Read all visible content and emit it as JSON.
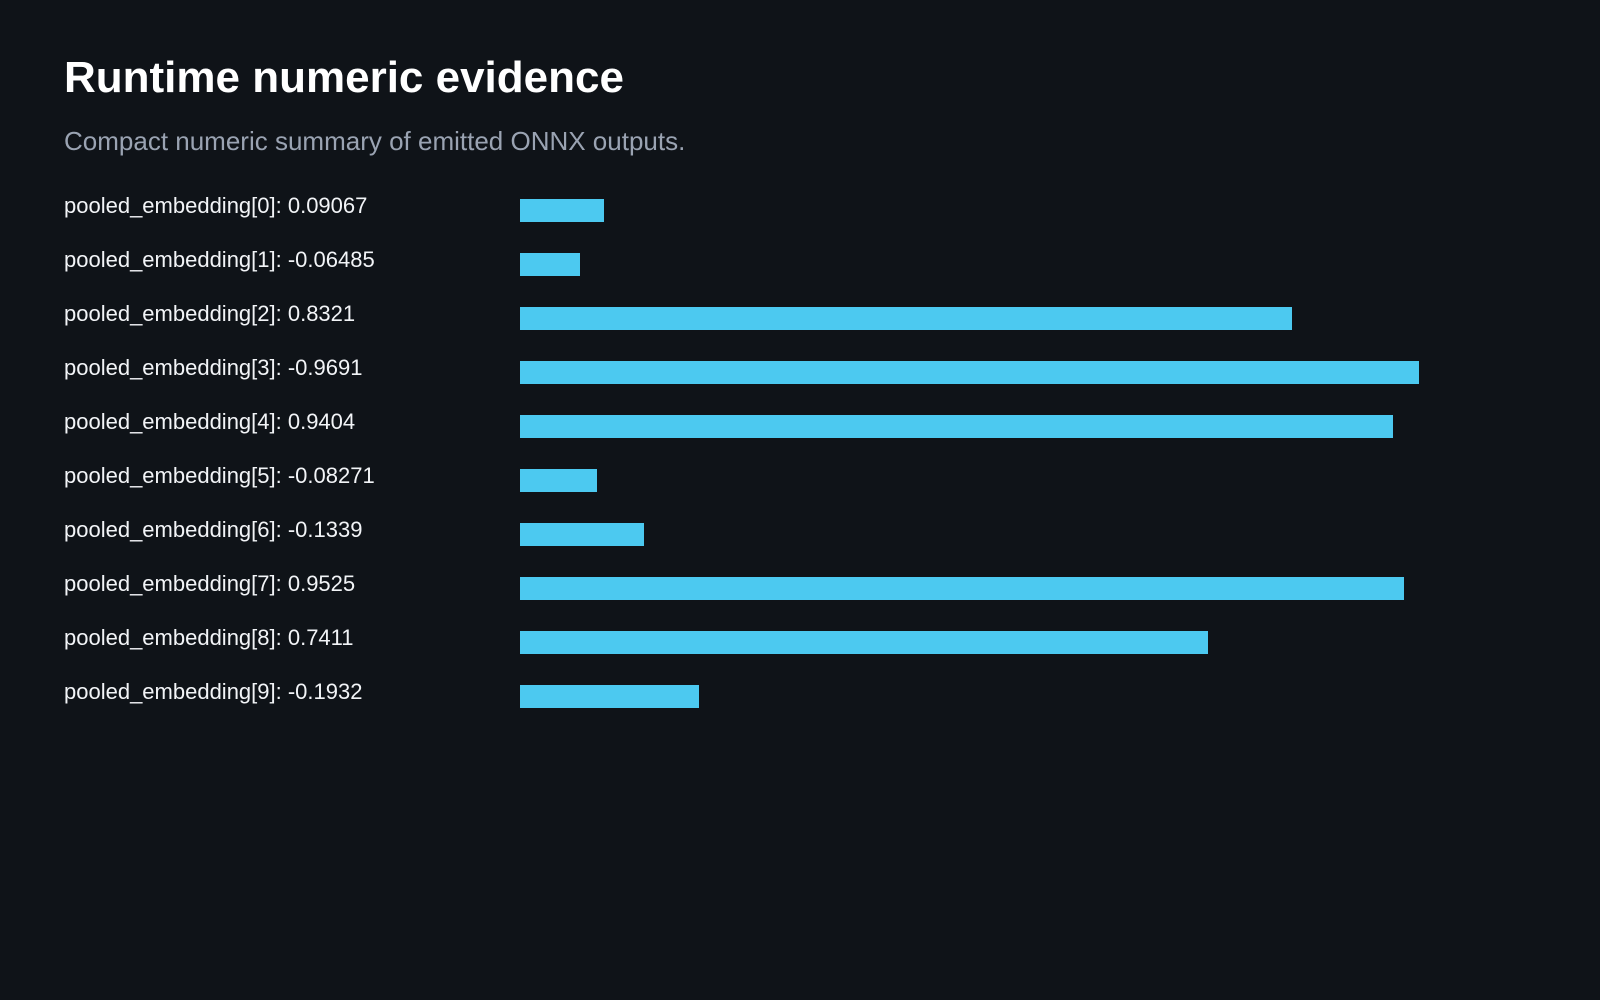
{
  "header": {
    "title": "Runtime numeric evidence",
    "subtitle": "Compact numeric summary of emitted ONNX outputs."
  },
  "colors": {
    "background": "#0f1318",
    "bar": "#4cc9f0",
    "title": "#ffffff",
    "subtitle": "#9aa3b2",
    "label": "#f2f4f7"
  },
  "chart_data": {
    "type": "bar",
    "orientation": "horizontal",
    "bar_length_encodes": "absolute value",
    "categories": [
      "pooled_embedding[0]",
      "pooled_embedding[1]",
      "pooled_embedding[2]",
      "pooled_embedding[3]",
      "pooled_embedding[4]",
      "pooled_embedding[5]",
      "pooled_embedding[6]",
      "pooled_embedding[7]",
      "pooled_embedding[8]",
      "pooled_embedding[9]"
    ],
    "values": [
      0.09067,
      -0.06485,
      0.8321,
      -0.9691,
      0.9404,
      -0.08271,
      -0.1339,
      0.9525,
      0.7411,
      -0.1932
    ],
    "labels": [
      "pooled_embedding[0]: 0.09067",
      "pooled_embedding[1]: -0.06485",
      "pooled_embedding[2]: 0.8321",
      "pooled_embedding[3]: -0.9691",
      "pooled_embedding[4]: 0.9404",
      "pooled_embedding[5]: -0.08271",
      "pooled_embedding[6]: -0.1339",
      "pooled_embedding[7]: 0.9525",
      "pooled_embedding[8]: 0.7411",
      "pooled_embedding[9]: -0.1932"
    ],
    "grid": false,
    "legend": "none"
  }
}
